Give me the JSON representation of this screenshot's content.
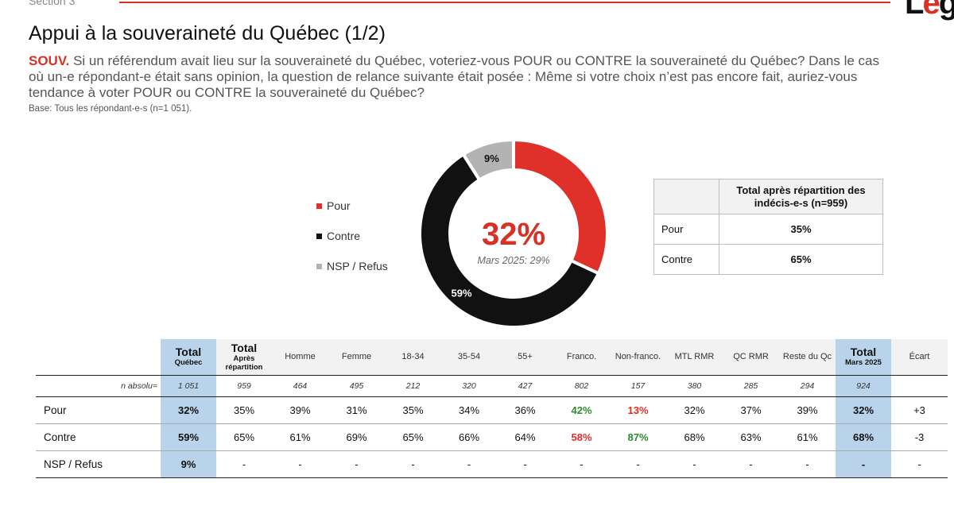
{
  "header": {
    "section": "Section 3",
    "logo": "Lége"
  },
  "title": "Appui à la souveraineté du Québec (1/2)",
  "question": {
    "code": "SOUV.",
    "text": "Si un référendum avait lieu sur la souveraineté du Québec, voteriez-vous POUR ou CONTRE la souveraineté du Québec? Dans le cas où un-e répondant-e était sans opinion, la question de relance suivante était posée : Même si votre choix n’est pas encore fait, auriez-vous tendance à voter POUR ou CONTRE la souveraineté du Québec?",
    "base": "Base: Tous les répondant-e-s (n=1 051)."
  },
  "colors": {
    "pour": "#e0302a",
    "contre": "#111111",
    "nsp": "#b3b3b3",
    "highlight": "#b9d4ea",
    "green": "#2e8b2e",
    "red": "#d93025"
  },
  "chart_data": {
    "type": "pie",
    "variant": "donut",
    "labels": [
      "Pour",
      "Contre",
      "NSP / Refus"
    ],
    "values": [
      32,
      59,
      9
    ],
    "value_labels": [
      "",
      "59%",
      "9%"
    ],
    "center_value": "32%",
    "center_caption": "Mars 2025: 29%",
    "legend_position": "left"
  },
  "legend": [
    {
      "label": "Pour",
      "color": "#e0302a"
    },
    {
      "label": "Contre",
      "color": "#111111"
    },
    {
      "label": "NSP / Refus",
      "color": "#b3b3b3"
    }
  ],
  "side_table": {
    "header": "Total après répartition des indécis-e-s (n=959)",
    "rows": [
      {
        "label": "Pour",
        "value": "35%"
      },
      {
        "label": "Contre",
        "value": "65%"
      }
    ]
  },
  "table": {
    "columns": [
      {
        "label": "Total",
        "sub": "Québec",
        "style": "blue-stack"
      },
      {
        "label": "Total",
        "sub": "Après répartition",
        "style": "grey-stack"
      },
      {
        "label": "Homme"
      },
      {
        "label": "Femme"
      },
      {
        "label": "18-34"
      },
      {
        "label": "35-54"
      },
      {
        "label": "55+"
      },
      {
        "label": "Franco."
      },
      {
        "label": "Non-franco."
      },
      {
        "label": "MTL RMR"
      },
      {
        "label": "QC RMR"
      },
      {
        "label": "Reste du Qc"
      },
      {
        "label": "Total",
        "sub": "Mars 2025",
        "style": "blue-stack"
      },
      {
        "label": "Écart"
      }
    ],
    "n_label": "n absolu=",
    "n_values": [
      "1 051",
      "959",
      "464",
      "495",
      "212",
      "320",
      "427",
      "802",
      "157",
      "380",
      "285",
      "294",
      "924",
      ""
    ],
    "rows": [
      {
        "label": "Pour",
        "values": [
          "32%",
          "35%",
          "39%",
          "31%",
          "35%",
          "34%",
          "36%",
          "42%",
          "13%",
          "32%",
          "37%",
          "39%",
          "32%",
          "+3"
        ],
        "styles": [
          "blue",
          "",
          "",
          "",
          "",
          "",
          "",
          "green",
          "red",
          "",
          "",
          "",
          "blue",
          ""
        ]
      },
      {
        "label": "Contre",
        "values": [
          "59%",
          "65%",
          "61%",
          "69%",
          "65%",
          "66%",
          "64%",
          "58%",
          "87%",
          "68%",
          "63%",
          "61%",
          "68%",
          "-3"
        ],
        "styles": [
          "blue",
          "",
          "",
          "",
          "",
          "",
          "",
          "red",
          "green",
          "",
          "",
          "",
          "blue",
          ""
        ]
      },
      {
        "label": "NSP / Refus",
        "values": [
          "9%",
          "-",
          "-",
          "-",
          "-",
          "-",
          "-",
          "-",
          "-",
          "-",
          "-",
          "-",
          "-",
          "-"
        ],
        "styles": [
          "blue",
          "",
          "",
          "",
          "",
          "",
          "",
          "",
          "",
          "",
          "",
          "",
          "blue",
          ""
        ]
      }
    ]
  }
}
